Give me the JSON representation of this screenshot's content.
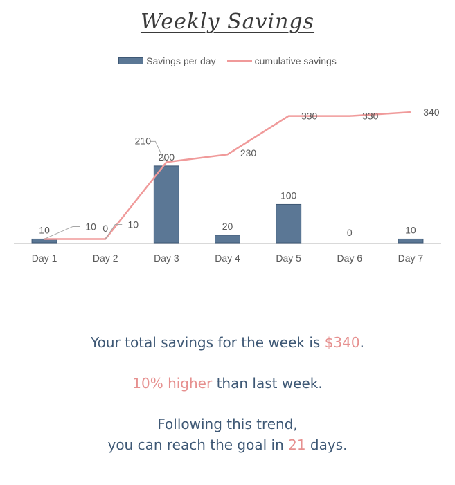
{
  "title": "Weekly Savings",
  "colors": {
    "bar": "#5b7795",
    "bar_edge": "#3e5875",
    "line": "#f09a9a",
    "accent": "#e6908f",
    "text": "#3e5875"
  },
  "chart_data": {
    "type": "bar",
    "categories": [
      "Day 1",
      "Day 2",
      "Day 3",
      "Day 4",
      "Day 5",
      "Day 6",
      "Day 7"
    ],
    "series": [
      {
        "name": "Savings per day",
        "type": "bar",
        "values": [
          10,
          0,
          200,
          20,
          100,
          0,
          10
        ]
      },
      {
        "name": "cumulative savings",
        "type": "line",
        "values": [
          10,
          10,
          210,
          230,
          330,
          330,
          340
        ]
      }
    ],
    "ylim": [
      0,
      360
    ],
    "grid": false,
    "legend": "top-center"
  },
  "summary": {
    "line1_pre": "Your total savings for the week is ",
    "line1_value": "$340",
    "line1_post": ".",
    "line2_value": "10% higher",
    "line2_post": " than last week.",
    "line3": "Following this trend,",
    "line4_pre": "you can reach the goal in ",
    "line4_value": "21",
    "line4_post": " days."
  }
}
